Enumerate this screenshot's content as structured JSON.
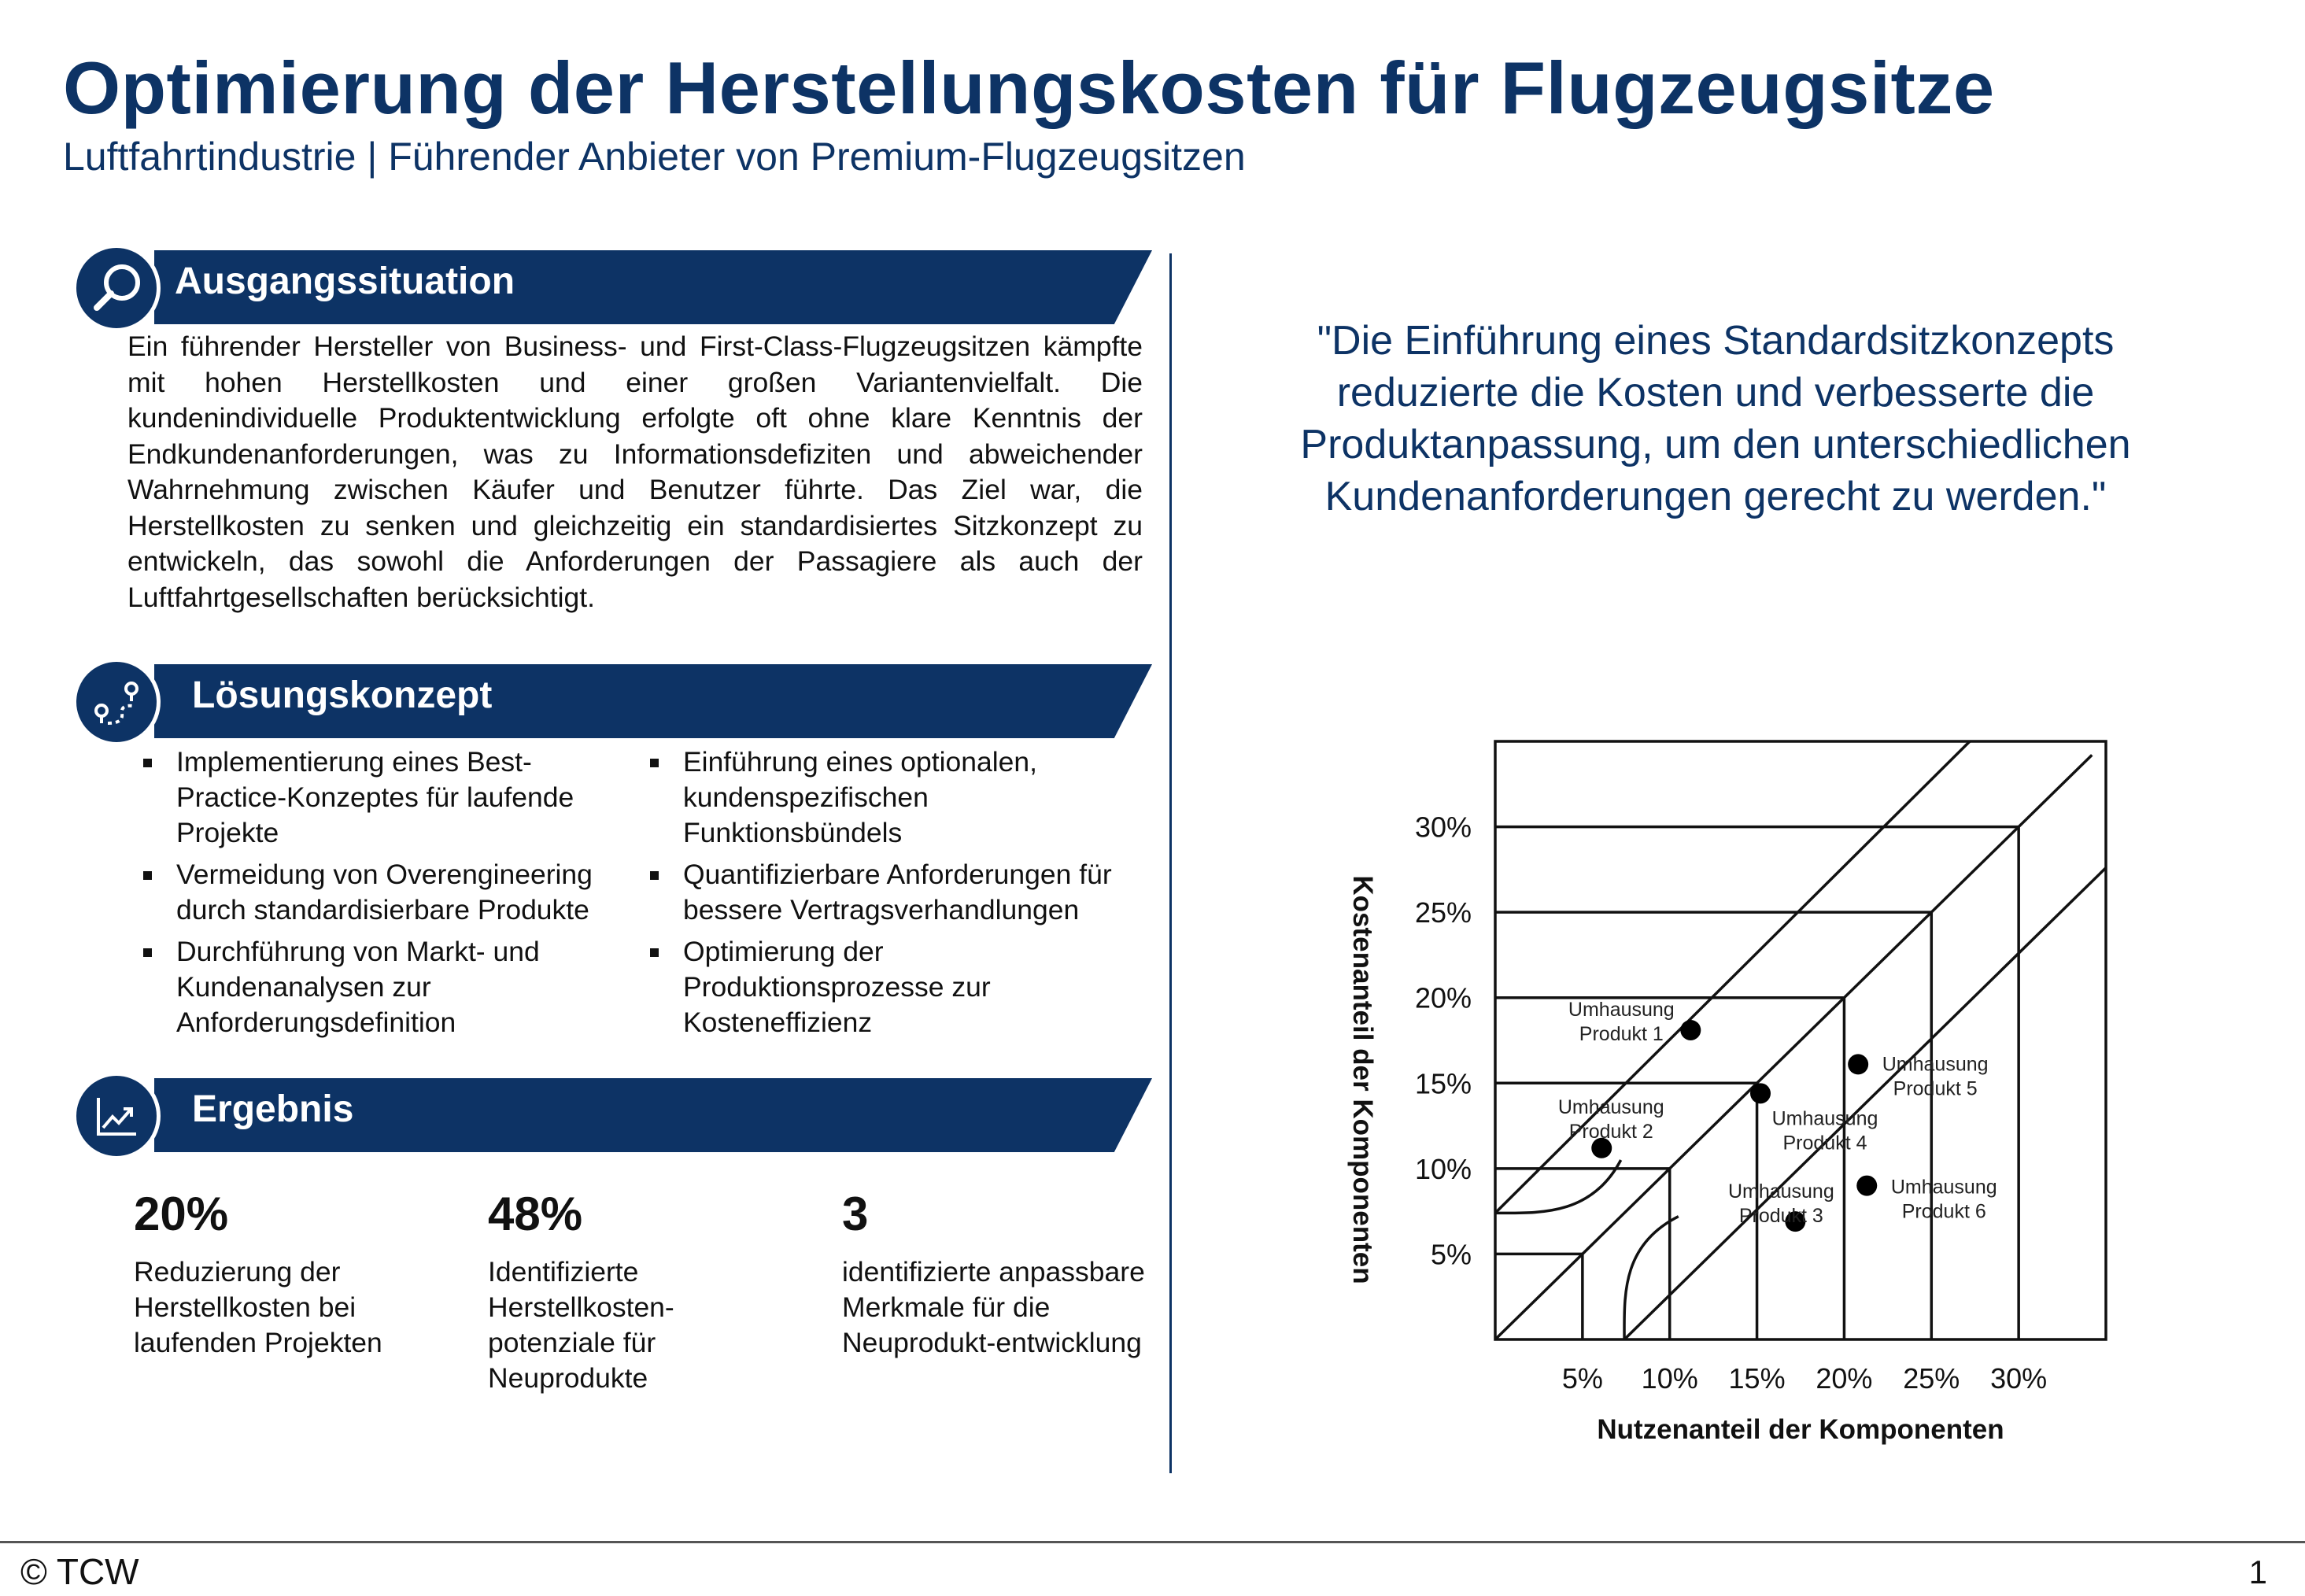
{
  "header": {
    "title": "Optimierung der Herstellungskosten für Flugzeugsitze",
    "subtitle": "Luftfahrtindustrie | Führender Anbieter von Premium-Flugzeugsitzen"
  },
  "sections": {
    "situation": {
      "title": "Ausgangssituation",
      "icon": "magnifier-icon",
      "text": "Ein führender Hersteller von Business- und First-Class-Flugzeugsitzen kämpfte mit hohen Herstellkosten und einer großen Variantenvielfalt. Die kundenindividuelle Produktentwicklung erfolgte oft ohne klare Kenntnis der Endkundenanforderungen, was zu Informationsdefiziten und abweichender Wahrnehmung zwischen Käufer und Benutzer führte. Das Ziel war, die Herstellkosten zu senken und gleichzeitig ein standardisiertes Sitzkonzept zu entwickeln, das sowohl die Anforderungen der Passagiere als auch der Luftfahrtgesellschaften berücksichtigt."
    },
    "solution": {
      "title": "Lösungskonzept",
      "icon": "route-icon",
      "left_items": [
        "Implementierung eines Best-Practice-Konzeptes für laufende Projekte",
        "Vermeidung von Overengineering durch standardisierbare Produkte",
        "Durchführung von Markt- und Kundenanalysen zur Anforderungsdefinition"
      ],
      "right_items": [
        "Einführung eines optionalen, kundenspezifischen Funktionsbündels",
        "Quantifizierbare Anforderungen für bessere Vertragsverhandlungen",
        "Optimierung der Produktionsprozesse zur Kosteneffizienz"
      ]
    },
    "result": {
      "title": "Ergebnis",
      "icon": "chart-trend-icon",
      "metrics": [
        {
          "value": "20%",
          "label": "Reduzierung der Herstellkosten bei laufenden Projekten"
        },
        {
          "value": "48%",
          "label": "Identifizierte Herstellkosten-potenziale für Neuprodukte"
        },
        {
          "value": "3",
          "label": "identifizierte anpassbare Merkmale für die Neuprodukt-entwicklung"
        }
      ]
    }
  },
  "quote": "\"Die Einführung eines Standardsitzkonzepts reduzierte die Kosten und verbesserte die Produktanpassung, um den unterschiedlichen Kundenanforderungen gerecht zu werden.\"",
  "chart_data": {
    "type": "scatter",
    "xlabel": "Nutzenanteil der Komponenten",
    "ylabel": "Kostenanteil der Komponenten",
    "xlim": [
      0,
      35
    ],
    "ylim": [
      0,
      35
    ],
    "x_ticks": [
      5,
      10,
      15,
      20,
      25,
      30
    ],
    "y_ticks": [
      5,
      10,
      15,
      20,
      25,
      30
    ],
    "tick_labels": [
      "5%",
      "10%",
      "15%",
      "20%",
      "25%",
      "30%"
    ],
    "grid": false,
    "points": [
      {
        "label": [
          "Umhausung",
          "Produkt 1"
        ],
        "x": 11.2,
        "y": 18.1
      },
      {
        "label": [
          "Umhausung",
          "Produkt 2"
        ],
        "x": 6.1,
        "y": 11.2
      },
      {
        "label": [
          "Umhausung",
          "Produkt 3"
        ],
        "x": 17.2,
        "y": 6.9
      },
      {
        "label": [
          "Umhausung",
          "Produkt 4"
        ],
        "x": 15.2,
        "y": 14.4
      },
      {
        "label": [
          "Umhausung",
          "Produkt 5"
        ],
        "x": 20.8,
        "y": 16.1
      },
      {
        "label": [
          "Umhausung",
          "Produkt 6"
        ],
        "x": 21.3,
        "y": 9.0
      }
    ]
  },
  "footer": {
    "copyright": "© TCW",
    "page": "1"
  }
}
